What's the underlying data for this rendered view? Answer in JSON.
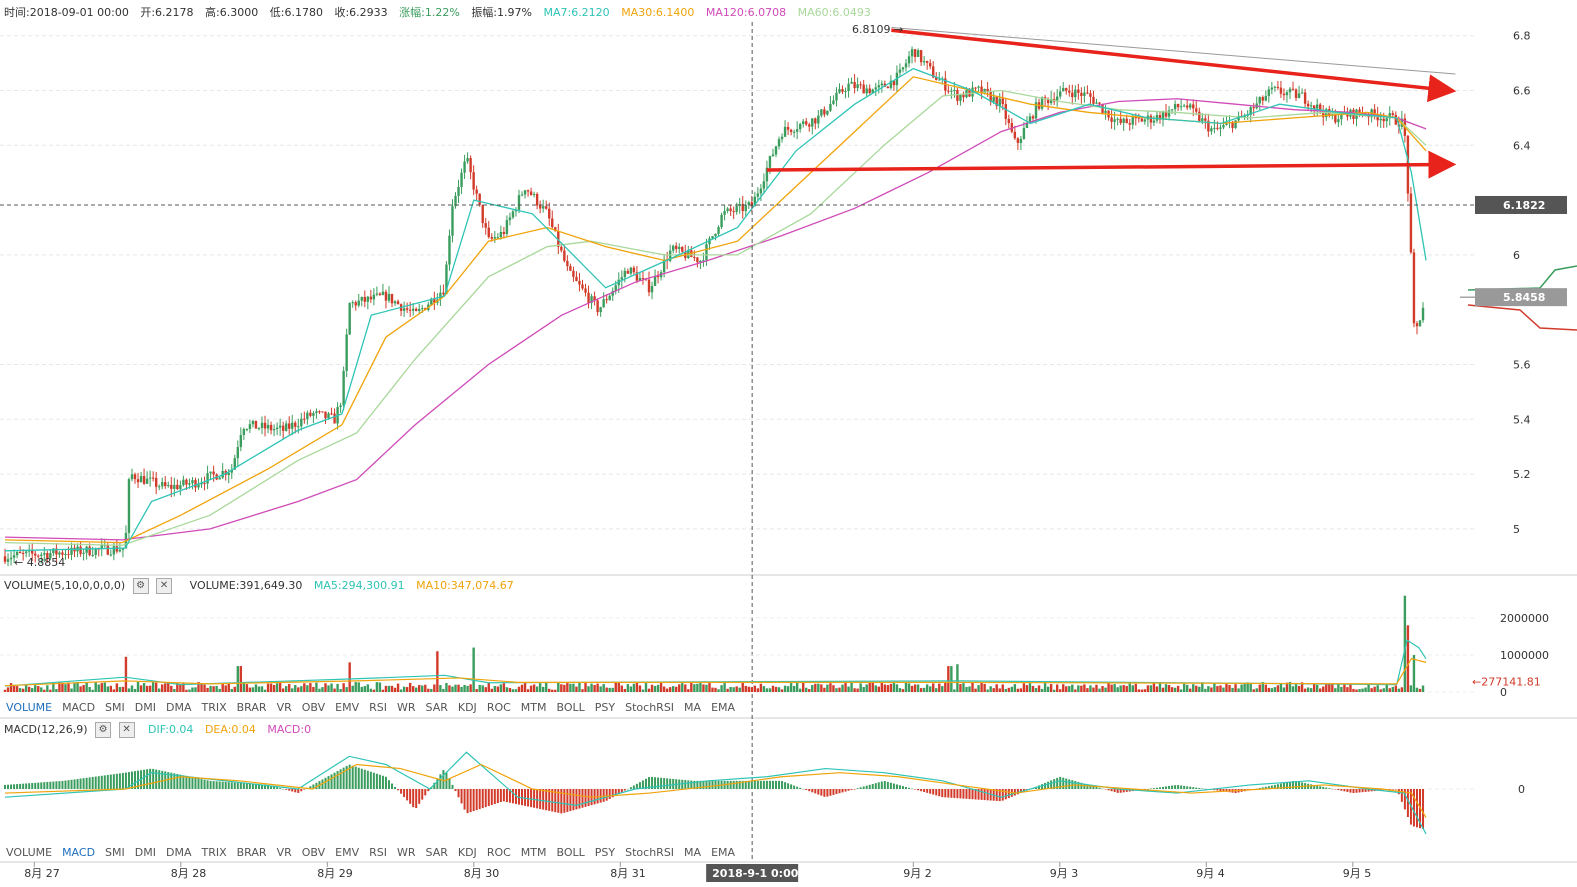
{
  "info_bar": {
    "time": "时间:2018-09-01 00:00",
    "open": "开:6.2178",
    "high": "高:6.3000",
    "low": "低:6.1780",
    "close": "收:6.2933",
    "change": "涨幅:1.22%",
    "amplitude": "振幅:1.97%",
    "ma7": "MA7:6.2120",
    "ma30": "MA30:6.1400",
    "ma120": "MA120:6.0708",
    "ma60": "MA60:6.0493"
  },
  "volume_header": {
    "title": "VOLUME(5,10,0,0,0,0)",
    "value": "VOLUME:391,649.30",
    "ma5": "MA5:294,300.91",
    "ma10": "MA10:347,074.67"
  },
  "macd_header": {
    "title": "MACD(12,26,9)",
    "dif": "DIF:0.04",
    "dea": "DEA:0.04",
    "macd": "MACD:0"
  },
  "indicator_tabs": [
    "VOLUME",
    "MACD",
    "SMI",
    "DMI",
    "DMA",
    "TRIX",
    "BRAR",
    "VR",
    "OBV",
    "EMV",
    "RSI",
    "WR",
    "SAR",
    "KDJ",
    "ROC",
    "MTM",
    "BOLL",
    "PSY",
    "StochRSI",
    "MA",
    "EMA"
  ],
  "active_tab_1": "VOLUME",
  "active_tab_2": "MACD",
  "annotations": {
    "high_label": "6.8109 →",
    "low_label": "← 4.8854",
    "crosshair_price": "6.1822",
    "last_price": "5.8458",
    "volume_last": "←277141.81",
    "crosshair_time": "2018-9-1 0:00"
  },
  "colors": {
    "up": "#3a9d5d",
    "down": "#d23a2a",
    "ma7": "#2ec4b6",
    "ma30": "#f0a30a",
    "ma120": "#d04ab8",
    "ma60": "#a8d89a",
    "arrow": "#e8231b"
  },
  "chart_data": [
    {
      "type": "candlestick",
      "title": "",
      "y_ticks": [
        5.0,
        5.2,
        5.4,
        5.6,
        6.0,
        6.4,
        6.6,
        6.8
      ],
      "y_tick_labels": [
        "5",
        "5.2",
        "5.4",
        "5.6",
        "6",
        "6.4",
        "6.6",
        "6.8"
      ],
      "ylim": [
        4.85,
        6.85
      ],
      "x_tick_labels": [
        "8月 27",
        "8月 28",
        "8月 29",
        "8月 30",
        "8月 31",
        "9月 2",
        "9月 3",
        "9月 4",
        "9月 5"
      ],
      "x_ticks_days": [
        0.2,
        1.2,
        2.2,
        3.2,
        4.2,
        6.2,
        7.2,
        8.2,
        9.2
      ],
      "close_path": [
        [
          0.0,
          4.9
        ],
        [
          0.55,
          4.92
        ],
        [
          0.82,
          4.93
        ],
        [
          0.85,
          5.2
        ],
        [
          1.1,
          5.15
        ],
        [
          1.3,
          5.17
        ],
        [
          1.55,
          5.22
        ],
        [
          1.62,
          5.38
        ],
        [
          1.9,
          5.36
        ],
        [
          2.1,
          5.42
        ],
        [
          2.25,
          5.4
        ],
        [
          2.3,
          5.48
        ],
        [
          2.35,
          5.82
        ],
        [
          2.6,
          5.85
        ],
        [
          2.8,
          5.78
        ],
        [
          3.0,
          5.88
        ],
        [
          3.05,
          6.18
        ],
        [
          3.15,
          6.35
        ],
        [
          3.3,
          6.05
        ],
        [
          3.4,
          6.08
        ],
        [
          3.55,
          6.25
        ],
        [
          3.7,
          6.15
        ],
        [
          3.85,
          5.93
        ],
        [
          4.05,
          5.8
        ],
        [
          4.25,
          5.95
        ],
        [
          4.4,
          5.88
        ],
        [
          4.55,
          6.02
        ],
        [
          4.75,
          5.98
        ],
        [
          4.9,
          6.15
        ],
        [
          5.1,
          6.18
        ],
        [
          5.3,
          6.45
        ],
        [
          5.55,
          6.5
        ],
        [
          5.75,
          6.62
        ],
        [
          5.95,
          6.6
        ],
        [
          6.1,
          6.65
        ],
        [
          6.2,
          6.75
        ],
        [
          6.35,
          6.65
        ],
        [
          6.5,
          6.58
        ],
        [
          6.65,
          6.6
        ],
        [
          6.8,
          6.55
        ],
        [
          6.9,
          6.4
        ],
        [
          7.05,
          6.55
        ],
        [
          7.25,
          6.6
        ],
        [
          7.4,
          6.58
        ],
        [
          7.6,
          6.48
        ],
        [
          7.85,
          6.5
        ],
        [
          8.05,
          6.55
        ],
        [
          8.25,
          6.45
        ],
        [
          8.45,
          6.5
        ],
        [
          8.65,
          6.6
        ],
        [
          8.85,
          6.58
        ],
        [
          9.05,
          6.5
        ],
        [
          9.25,
          6.52
        ],
        [
          9.45,
          6.5
        ],
        [
          9.55,
          6.48
        ],
        [
          9.58,
          6.2
        ],
        [
          9.62,
          5.7
        ],
        [
          9.7,
          5.85
        ]
      ],
      "ma7_path": [
        [
          0.0,
          4.92
        ],
        [
          0.82,
          4.93
        ],
        [
          1.0,
          5.1
        ],
        [
          1.5,
          5.2
        ],
        [
          2.0,
          5.36
        ],
        [
          2.3,
          5.42
        ],
        [
          2.5,
          5.78
        ],
        [
          3.0,
          5.85
        ],
        [
          3.2,
          6.2
        ],
        [
          3.6,
          6.15
        ],
        [
          4.1,
          5.88
        ],
        [
          4.6,
          6.0
        ],
        [
          5.0,
          6.1
        ],
        [
          5.4,
          6.38
        ],
        [
          5.8,
          6.55
        ],
        [
          6.2,
          6.68
        ],
        [
          6.6,
          6.6
        ],
        [
          7.0,
          6.48
        ],
        [
          7.4,
          6.55
        ],
        [
          7.8,
          6.5
        ],
        [
          8.3,
          6.48
        ],
        [
          8.7,
          6.55
        ],
        [
          9.1,
          6.52
        ],
        [
          9.5,
          6.5
        ],
        [
          9.6,
          6.3
        ],
        [
          9.7,
          5.98
        ]
      ],
      "ma30_path": [
        [
          0.0,
          4.96
        ],
        [
          0.8,
          4.95
        ],
        [
          1.2,
          5.05
        ],
        [
          1.8,
          5.22
        ],
        [
          2.3,
          5.38
        ],
        [
          2.6,
          5.7
        ],
        [
          3.0,
          5.85
        ],
        [
          3.3,
          6.05
        ],
        [
          3.7,
          6.1
        ],
        [
          4.1,
          6.03
        ],
        [
          4.5,
          5.98
        ],
        [
          5.0,
          6.05
        ],
        [
          5.4,
          6.25
        ],
        [
          5.8,
          6.45
        ],
        [
          6.2,
          6.65
        ],
        [
          6.6,
          6.6
        ],
        [
          7.0,
          6.55
        ],
        [
          7.4,
          6.52
        ],
        [
          7.8,
          6.5
        ],
        [
          8.3,
          6.48
        ],
        [
          8.8,
          6.5
        ],
        [
          9.3,
          6.52
        ],
        [
          9.5,
          6.5
        ],
        [
          9.7,
          6.38
        ]
      ],
      "ma60_path": [
        [
          0.0,
          4.95
        ],
        [
          0.8,
          4.94
        ],
        [
          1.4,
          5.05
        ],
        [
          2.0,
          5.25
        ],
        [
          2.4,
          5.35
        ],
        [
          2.8,
          5.62
        ],
        [
          3.3,
          5.92
        ],
        [
          3.7,
          6.03
        ],
        [
          4.0,
          6.05
        ],
        [
          4.5,
          6.0
        ],
        [
          5.0,
          6.0
        ],
        [
          5.5,
          6.15
        ],
        [
          6.0,
          6.4
        ],
        [
          6.4,
          6.58
        ],
        [
          6.8,
          6.6
        ],
        [
          7.2,
          6.56
        ],
        [
          7.6,
          6.53
        ],
        [
          8.0,
          6.52
        ],
        [
          8.5,
          6.5
        ],
        [
          9.0,
          6.52
        ],
        [
          9.5,
          6.5
        ],
        [
          9.7,
          6.4
        ]
      ],
      "ma120_path": [
        [
          0.0,
          4.97
        ],
        [
          0.8,
          4.96
        ],
        [
          1.4,
          5.0
        ],
        [
          2.0,
          5.1
        ],
        [
          2.4,
          5.18
        ],
        [
          2.8,
          5.38
        ],
        [
          3.3,
          5.6
        ],
        [
          3.8,
          5.78
        ],
        [
          4.3,
          5.9
        ],
        [
          4.8,
          5.98
        ],
        [
          5.3,
          6.07
        ],
        [
          5.8,
          6.17
        ],
        [
          6.3,
          6.3
        ],
        [
          6.8,
          6.45
        ],
        [
          7.2,
          6.52
        ],
        [
          7.6,
          6.56
        ],
        [
          8.0,
          6.57
        ],
        [
          8.4,
          6.55
        ],
        [
          8.8,
          6.53
        ],
        [
          9.2,
          6.52
        ],
        [
          9.5,
          6.5
        ],
        [
          9.7,
          6.46
        ]
      ],
      "trend_line": [
        [
          6.05,
          6.83
        ],
        [
          9.9,
          6.66
        ]
      ],
      "red_arrow_top": [
        [
          6.05,
          6.82
        ],
        [
          9.9,
          6.6
        ]
      ],
      "red_arrow_bottom": [
        [
          5.2,
          6.31
        ],
        [
          9.9,
          6.33
        ]
      ],
      "crosshair_x_day": 5.1,
      "crosshair_price": 6.1822,
      "last_price": 5.8458
    },
    {
      "type": "bar",
      "title": "VOLUME",
      "y_tick_labels": [
        "0",
        "1000000",
        "2000000"
      ],
      "y_ticks": [
        0,
        1000000,
        2000000
      ],
      "ylim": [
        0,
        2700000
      ],
      "notable_volumes": [
        [
          0.82,
          950000
        ],
        [
          1.6,
          700000
        ],
        [
          2.35,
          800000
        ],
        [
          2.95,
          1100000
        ],
        [
          3.2,
          1200000
        ],
        [
          6.45,
          700000
        ],
        [
          6.5,
          750000
        ],
        [
          9.55,
          2600000
        ],
        [
          9.58,
          1800000
        ],
        [
          9.62,
          1000000
        ],
        [
          9.7,
          277141.81
        ]
      ],
      "typical_volume": 150000
    },
    {
      "type": "bar",
      "title": "MACD",
      "y_tick_labels": [
        "0"
      ],
      "ylim": [
        -0.12,
        0.12
      ],
      "hist_path": [
        [
          0.0,
          0.01
        ],
        [
          0.4,
          0.02
        ],
        [
          0.82,
          0.04
        ],
        [
          1.0,
          0.05
        ],
        [
          1.4,
          0.02
        ],
        [
          1.8,
          0.01
        ],
        [
          2.0,
          -0.01
        ],
        [
          2.35,
          0.06
        ],
        [
          2.6,
          0.03
        ],
        [
          2.8,
          -0.05
        ],
        [
          3.0,
          0.05
        ],
        [
          3.15,
          -0.06
        ],
        [
          3.4,
          -0.03
        ],
        [
          3.8,
          -0.06
        ],
        [
          4.1,
          -0.03
        ],
        [
          4.4,
          0.03
        ],
        [
          4.7,
          0.02
        ],
        [
          5.0,
          0.02
        ],
        [
          5.3,
          0.02
        ],
        [
          5.6,
          -0.02
        ],
        [
          6.0,
          0.02
        ],
        [
          6.4,
          -0.02
        ],
        [
          6.8,
          -0.03
        ],
        [
          7.2,
          0.03
        ],
        [
          7.6,
          -0.01
        ],
        [
          8.0,
          0.01
        ],
        [
          8.4,
          -0.01
        ],
        [
          8.8,
          0.02
        ],
        [
          9.2,
          -0.01
        ],
        [
          9.5,
          0.0
        ],
        [
          9.6,
          -0.09
        ],
        [
          9.7,
          -0.1
        ]
      ],
      "dif_path": [
        [
          0.0,
          -0.02
        ],
        [
          0.82,
          0.0
        ],
        [
          1.0,
          0.04
        ],
        [
          1.5,
          0.02
        ],
        [
          2.0,
          0.0
        ],
        [
          2.35,
          0.08
        ],
        [
          2.6,
          0.06
        ],
        [
          2.9,
          0.0
        ],
        [
          3.15,
          0.09
        ],
        [
          3.5,
          -0.02
        ],
        [
          3.9,
          -0.04
        ],
        [
          4.3,
          0.0
        ],
        [
          4.8,
          0.02
        ],
        [
          5.2,
          0.03
        ],
        [
          5.6,
          0.05
        ],
        [
          6.0,
          0.04
        ],
        [
          6.4,
          0.02
        ],
        [
          6.8,
          -0.02
        ],
        [
          7.2,
          0.02
        ],
        [
          7.6,
          0.0
        ],
        [
          8.0,
          -0.01
        ],
        [
          8.5,
          0.01
        ],
        [
          8.9,
          0.02
        ],
        [
          9.3,
          0.0
        ],
        [
          9.55,
          -0.01
        ],
        [
          9.7,
          -0.11
        ]
      ],
      "dea_path": [
        [
          0.0,
          -0.01
        ],
        [
          0.82,
          0.0
        ],
        [
          1.2,
          0.03
        ],
        [
          1.6,
          0.02
        ],
        [
          2.1,
          0.0
        ],
        [
          2.4,
          0.06
        ],
        [
          2.7,
          0.05
        ],
        [
          3.0,
          0.02
        ],
        [
          3.25,
          0.06
        ],
        [
          3.6,
          0.0
        ],
        [
          4.0,
          -0.02
        ],
        [
          4.4,
          -0.01
        ],
        [
          4.9,
          0.01
        ],
        [
          5.3,
          0.03
        ],
        [
          5.7,
          0.04
        ],
        [
          6.1,
          0.03
        ],
        [
          6.5,
          0.01
        ],
        [
          6.9,
          -0.01
        ],
        [
          7.3,
          0.01
        ],
        [
          7.7,
          0.0
        ],
        [
          8.1,
          -0.01
        ],
        [
          8.6,
          0.0
        ],
        [
          9.0,
          0.01
        ],
        [
          9.4,
          0.0
        ],
        [
          9.6,
          -0.01
        ],
        [
          9.7,
          -0.07
        ]
      ]
    }
  ]
}
